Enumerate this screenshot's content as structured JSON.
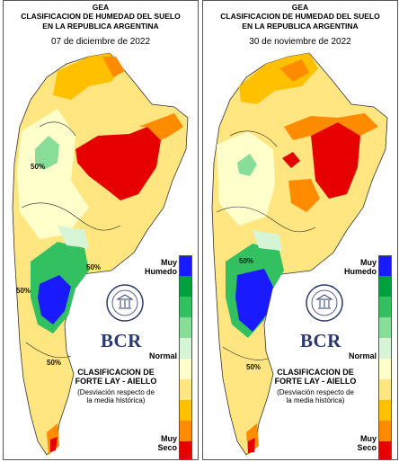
{
  "maps": [
    {
      "org": "GEA",
      "title_line1": "CLASIFICACION DE HUMEDAD DEL SUELO",
      "title_line2": "EN LA REPUBLICA ARGENTINA",
      "date": "07 de diciembre de 2022",
      "contour_labels": [
        "50%",
        "50%",
        "50%",
        "50%"
      ]
    },
    {
      "org": "GEA",
      "title_line1": "CLASIFICACION DE HUMEDAD DEL SUELO",
      "title_line2": "EN LA REPUBLICA ARGENTINA",
      "date": "30 de noviembre de 2022",
      "contour_labels": [
        "50%",
        "50%"
      ]
    }
  ],
  "legend": {
    "top_label_1": "Muy",
    "top_label_2": "Humedo",
    "mid_label": "Normal",
    "bottom_label_1": "Muy",
    "bottom_label_2": "Seco",
    "colors": [
      "#1a1aff",
      "#00a040",
      "#33c060",
      "#88dd99",
      "#d6f5d6",
      "#ffffcc",
      "#ffe680",
      "#ffc000",
      "#ff8c00",
      "#e60000"
    ]
  },
  "logo": {
    "text": "BCR"
  },
  "classification": {
    "title_line1": "CLASIFICACION DE",
    "title_line2": "FORTE LAY - AIELLO",
    "desc_line1": "(Desviación respecto de",
    "desc_line2": "la media histórica)"
  },
  "colors": {
    "very_wet": "#1a1aff",
    "wet": "#00a040",
    "normal": "#ffffcc",
    "dry": "#ffc000",
    "very_dry": "#e60000",
    "brand": "#2b3a6b"
  }
}
